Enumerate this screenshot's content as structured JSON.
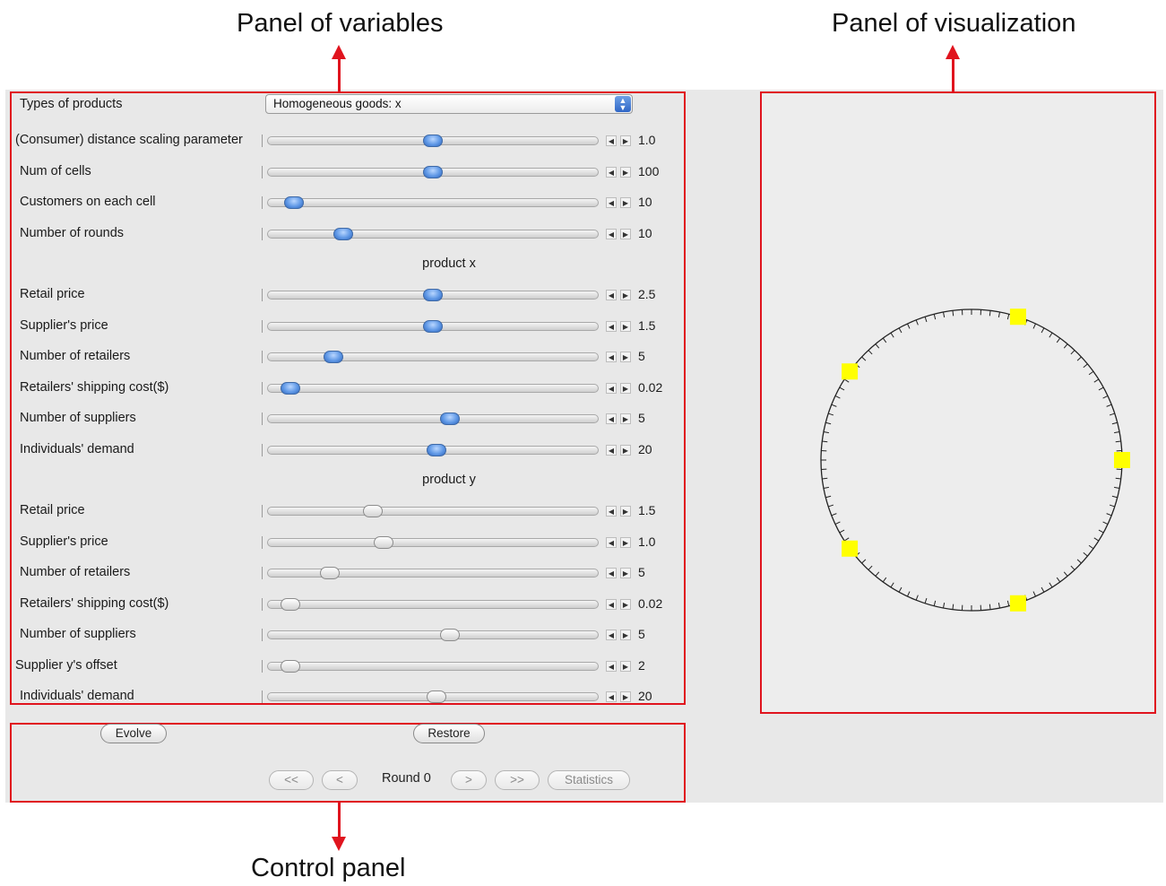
{
  "callouts": {
    "variables_panel": "Panel of variables",
    "visualization_panel": "Panel of visualization",
    "control_panel": "Control panel"
  },
  "variables": {
    "types_label": "Types of products",
    "types_value": "Homogeneous goods: x",
    "general": [
      {
        "label": "(Consumer) distance scaling parameter",
        "value": "1.0",
        "pos": 0.5
      },
      {
        "label": "Num of cells",
        "value": "100",
        "pos": 0.5
      },
      {
        "label": "Customers on each cell",
        "value": "10",
        "pos": 0.08
      },
      {
        "label": "Number of rounds",
        "value": "10",
        "pos": 0.23
      }
    ],
    "product_x_title": "product x",
    "product_x": [
      {
        "label": "Retail price",
        "value": "2.5",
        "pos": 0.5
      },
      {
        "label": "Supplier's price",
        "value": "1.5",
        "pos": 0.5
      },
      {
        "label": "Number of retailers",
        "value": "5",
        "pos": 0.2
      },
      {
        "label": "Retailers' shipping cost($)",
        "value": "0.02",
        "pos": 0.07
      },
      {
        "label": "Number of suppliers",
        "value": "5",
        "pos": 0.55
      },
      {
        "label": "Individuals' demand",
        "value": "20",
        "pos": 0.51
      }
    ],
    "product_y_title": "product y",
    "product_y": [
      {
        "label": "Retail price",
        "value": "1.5",
        "pos": 0.32
      },
      {
        "label": "Supplier's price",
        "value": "1.0",
        "pos": 0.35
      },
      {
        "label": "Number of retailers",
        "value": "5",
        "pos": 0.19
      },
      {
        "label": "Retailers' shipping cost($)",
        "value": "0.02",
        "pos": 0.07
      },
      {
        "label": "Number of suppliers",
        "value": "5",
        "pos": 0.55
      },
      {
        "label": "Supplier y's offset",
        "value": "2",
        "pos": 0.07
      },
      {
        "label": "Individuals' demand",
        "value": "20",
        "pos": 0.51
      }
    ]
  },
  "controls": {
    "evolve": "Evolve",
    "restore": "Restore",
    "first": "<<",
    "prev": "<",
    "round_label": "Round 0",
    "next": ">",
    "last": ">>",
    "statistics": "Statistics"
  },
  "visualization": {
    "cells": 100,
    "retailer_markers": 5,
    "marker_color": "#ffff00",
    "ring_color": "#222222"
  },
  "colors": {
    "annotation_red": "#e0141e",
    "slider_knob_blue": "#5f98e6"
  }
}
